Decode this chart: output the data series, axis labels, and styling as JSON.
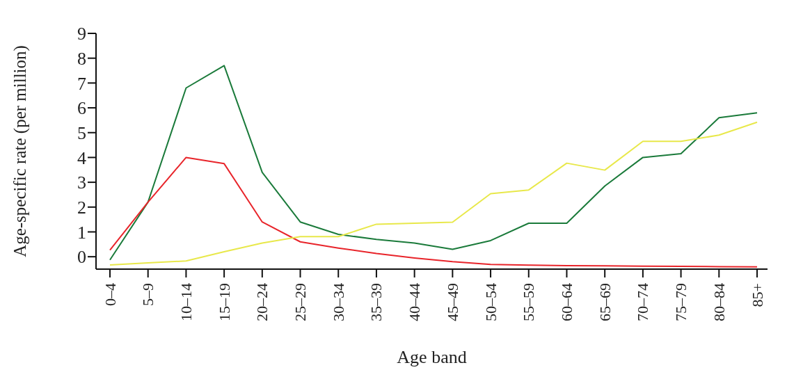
{
  "chart_data": {
    "type": "line",
    "xlabel": "Age band",
    "ylabel": "Age-specific rate (per million)",
    "categories": [
      "0–4",
      "5–9",
      "10–14",
      "15–19",
      "20–24",
      "25–29",
      "30–34",
      "35–39",
      "40–44",
      "45–49",
      "50–54",
      "55–59",
      "60–64",
      "65–69",
      "70–74",
      "75–79",
      "80–84",
      "85+"
    ],
    "ylim": [
      -0.5,
      9
    ],
    "yticks": [
      0,
      1,
      2,
      3,
      4,
      5,
      6,
      7,
      8,
      9
    ],
    "grid": false,
    "legend": false,
    "marker": "none",
    "line_style": "solid",
    "series": [
      {
        "color": "#1a7a3a",
        "values": [
          -0.13,
          2.2,
          6.8,
          7.7,
          3.4,
          1.4,
          0.9,
          0.7,
          0.55,
          0.3,
          0.65,
          1.35,
          1.35,
          2.85,
          4.0,
          4.15,
          5.6,
          5.8
        ]
      },
      {
        "color": "#e8242a",
        "values": [
          0.27,
          2.2,
          4.0,
          3.75,
          1.4,
          0.6,
          0.35,
          0.13,
          -0.05,
          -0.2,
          -0.31,
          -0.34,
          -0.36,
          -0.37,
          -0.38,
          -0.39,
          -0.4,
          -0.41
        ]
      },
      {
        "color": "#e8e84a",
        "values": [
          -0.33,
          -0.25,
          -0.17,
          0.2,
          0.55,
          0.81,
          0.81,
          1.31,
          1.35,
          1.39,
          2.54,
          2.69,
          3.77,
          3.49,
          4.65,
          4.65,
          4.9,
          5.42
        ]
      }
    ]
  }
}
